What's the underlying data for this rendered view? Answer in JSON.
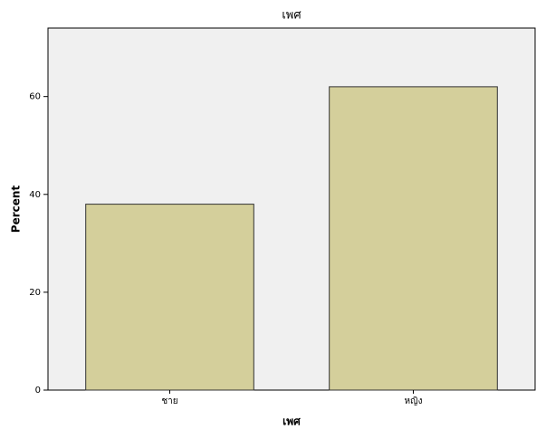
{
  "chart_data": {
    "type": "bar",
    "title": "เพศ",
    "x_label": "เพศ",
    "y_label": "Percent",
    "categories": [
      "ชาย",
      "หญิง"
    ],
    "values": [
      38,
      62
    ],
    "color": "#d4cf9b",
    "ylim": [
      0,
      74
    ],
    "yticks": [
      0,
      20,
      40,
      60
    ],
    "grid": false
  }
}
